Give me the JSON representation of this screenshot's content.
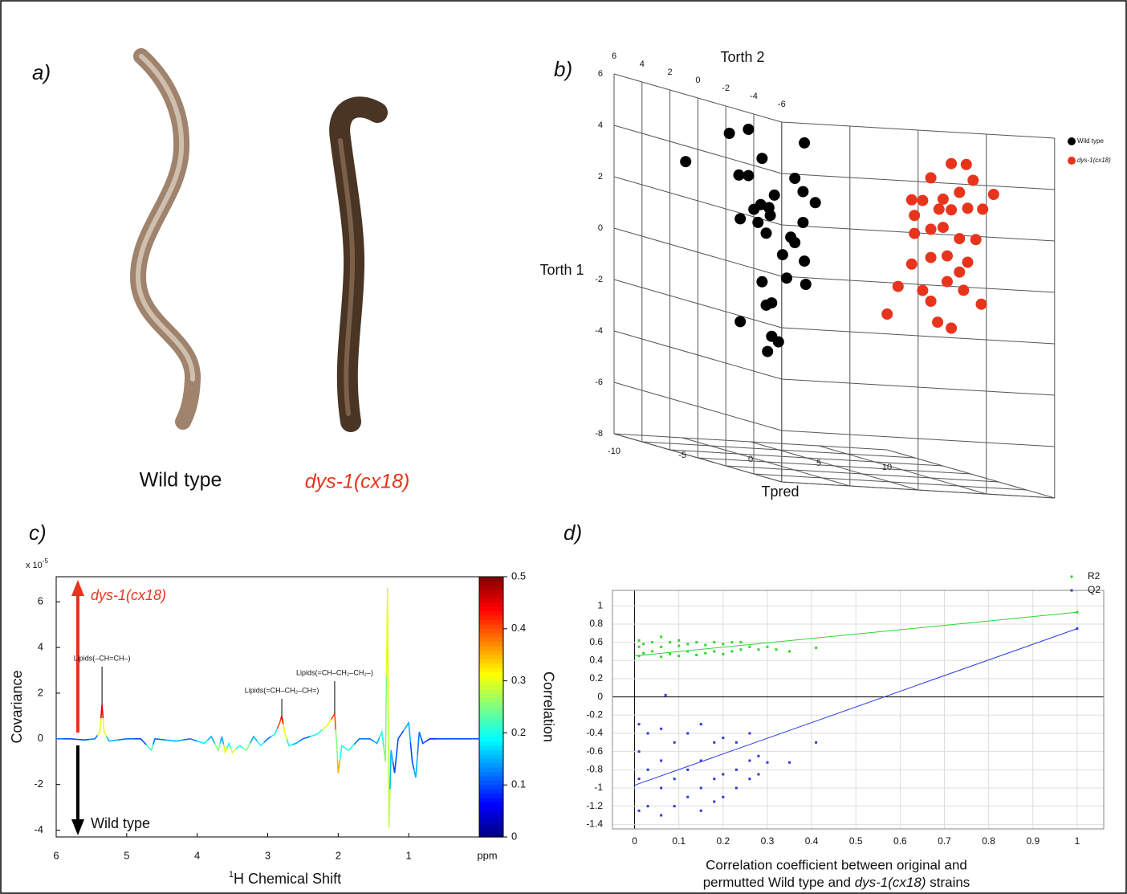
{
  "panel_labels": [
    "a)",
    "b)",
    "c)",
    "d)"
  ],
  "panel_a": {
    "labels": [
      "Wild type",
      "dys-1(cx18)"
    ]
  },
  "chart_data": [
    {
      "type": "scatter3d",
      "x_label": "Tpred",
      "y_label": "Torth 1",
      "z_label": "Torth 2",
      "xlim": [
        -10,
        10
      ],
      "ylim": [
        -8,
        6
      ],
      "zlim": [
        -6,
        6
      ],
      "xticks": [
        -10,
        -5,
        0,
        5,
        10
      ],
      "yticks": [
        -8,
        -6,
        -4,
        -2,
        0,
        2,
        4,
        6
      ],
      "zticks": [
        6,
        4,
        2,
        0,
        -2,
        -4,
        -6
      ],
      "series": [
        {
          "name": "Wild type",
          "color": "#000000",
          "x": [
            -6.8,
            -3.6,
            -2.2,
            1.9,
            -1.2,
            -2.9,
            -2.2,
            1.2,
            1.8,
            -0.3,
            -1.3,
            -0.7,
            -1.8,
            -2.8,
            -0.6,
            2.7,
            1.8,
            -1.5,
            -0.9,
            0.9,
            1.2,
            0.3,
            1.9,
            -1.2,
            0.6,
            2.0,
            -0.9,
            -0.5,
            -2.8,
            -0.5,
            0.0,
            -0.8
          ],
          "y": [
            3.0,
            4.2,
            4.4,
            4.0,
            3.3,
            2.6,
            2.6,
            2.6,
            2.1,
            1.9,
            1.5,
            1.4,
            1.3,
            0.9,
            1.1,
            1.7,
            0.9,
            0.8,
            0.4,
            0.3,
            0.1,
            -0.4,
            -0.6,
            -1.5,
            -1.3,
            -1.5,
            -2.4,
            -2.3,
            -3.1,
            -3.6,
            -3.8,
            -4.2
          ],
          "z": [
            4,
            4,
            4,
            4,
            4,
            4,
            4,
            4,
            4,
            4,
            4,
            4,
            4,
            4,
            4,
            4,
            4,
            4,
            4,
            4,
            4,
            4,
            4,
            4,
            4,
            4,
            4,
            4,
            4,
            4,
            4,
            4
          ]
        },
        {
          "name": "dys-1(cx18)",
          "color": "#e8341c",
          "x": [
            4.0,
            5.5,
            6.6,
            7.1,
            6.1,
            4.9,
            3.4,
            2.6,
            8.6,
            4.6,
            2.8,
            5.5,
            6.7,
            7.8,
            4.0,
            2.8,
            4.9,
            6.1,
            7.3,
            5.2,
            6.7,
            4.0,
            2.6,
            6.1,
            1.6,
            3.4,
            5.2,
            4.0,
            6.4,
            7.7,
            0.8,
            4.5,
            5.5
          ],
          "y": [
            3.8,
            4.4,
            4.4,
            3.8,
            3.3,
            3.0,
            2.9,
            2.9,
            3.3,
            2.6,
            2.3,
            2.6,
            2.7,
            2.7,
            1.8,
            1.6,
            1.9,
            1.5,
            1.5,
            0.8,
            0.6,
            0.7,
            0.4,
            0.2,
            -0.5,
            -0.6,
            -0.2,
            -1.0,
            -0.5,
            -1.0,
            -1.6,
            -1.8,
            -2.0
          ],
          "z": [
            -3,
            -3,
            -3,
            -3,
            -3,
            -3,
            -3,
            -3,
            -3,
            -3,
            -3,
            -3,
            -3,
            -3,
            -3,
            -3,
            -3,
            -3,
            -3,
            -3,
            -3,
            -3,
            -3,
            -3,
            -3,
            -3,
            -3,
            -3,
            -3,
            -3,
            -3,
            -3,
            -3
          ]
        }
      ]
    },
    {
      "type": "colored_line",
      "y_unit": "x 10",
      "y_unit_exp": "-5",
      "y_label": "Covariance",
      "x_label_sup": "1",
      "x_label": "H Chemical Shift",
      "x_unit": "ppm",
      "xlim": [
        6,
        0
      ],
      "ylim": [
        -4.3,
        7.1
      ],
      "xticks": [
        6,
        5,
        4,
        3,
        2,
        1
      ],
      "yticks": [
        -4,
        -2,
        0,
        2,
        4,
        6
      ],
      "x": [
        6.0,
        5.8,
        5.6,
        5.45,
        5.38,
        5.35,
        5.32,
        5.25,
        5.0,
        4.8,
        4.65,
        4.6,
        4.3,
        4.1,
        3.9,
        3.8,
        3.7,
        3.65,
        3.6,
        3.55,
        3.5,
        3.4,
        3.3,
        3.2,
        3.1,
        3.0,
        2.9,
        2.83,
        2.8,
        2.76,
        2.7,
        2.6,
        2.5,
        2.3,
        2.15,
        2.05,
        2.02,
        2.0,
        1.95,
        1.85,
        1.7,
        1.55,
        1.45,
        1.38,
        1.33,
        1.3,
        1.28,
        1.25,
        1.2,
        1.15,
        1.0,
        0.95,
        0.9,
        0.85,
        0.8,
        0.7,
        0.5,
        0.2,
        0.0
      ],
      "y": [
        0,
        0,
        -0.05,
        0,
        0.3,
        1.5,
        0.3,
        -0.1,
        0,
        0,
        -0.5,
        0,
        -0.1,
        0,
        -0.2,
        0.1,
        -0.5,
        0.1,
        -0.6,
        -0.2,
        -0.6,
        -0.3,
        -0.5,
        0.1,
        -0.3,
        0,
        0.2,
        0.7,
        1.0,
        0.3,
        -0.3,
        -0.2,
        0,
        0.2,
        0.6,
        1.1,
        -0.3,
        -1.5,
        -0.3,
        -0.5,
        0,
        0,
        -0.2,
        0.3,
        -1.0,
        6.6,
        -3.9,
        -0.5,
        -1.5,
        0,
        0.7,
        -1.0,
        -1.7,
        0.3,
        -0.2,
        0,
        0,
        0,
        0
      ],
      "correlation": [
        0.12,
        0.1,
        0.1,
        0.12,
        0.3,
        0.45,
        0.3,
        0.15,
        0.12,
        0.1,
        0.22,
        0.12,
        0.15,
        0.12,
        0.18,
        0.15,
        0.25,
        0.15,
        0.3,
        0.2,
        0.3,
        0.2,
        0.25,
        0.15,
        0.2,
        0.12,
        0.2,
        0.4,
        0.45,
        0.3,
        0.2,
        0.15,
        0.12,
        0.2,
        0.3,
        0.4,
        0.25,
        0.35,
        0.2,
        0.2,
        0.12,
        0.12,
        0.15,
        0.2,
        0.25,
        0.3,
        0.28,
        0.15,
        0.1,
        0.1,
        0.15,
        0.1,
        0.15,
        0.12,
        0.1,
        0.08,
        0.1,
        0.1,
        0.1
      ],
      "colorbar_label": "Correlation",
      "clim": [
        0,
        0.5
      ],
      "cticks": [
        0,
        0.1,
        0.2,
        0.3,
        0.4,
        0.5
      ],
      "annotations": [
        {
          "text": "Lipids(–CH=CH–)",
          "x": 5.35,
          "y": 1.5
        },
        {
          "text": "Lipids(=CH–CH₂–CH=)",
          "x": 2.8,
          "y": 1.0
        },
        {
          "text": "Lipids(=CH–CH₂–CH₂–)",
          "x": 2.05,
          "y": 1.1
        }
      ],
      "arrow_labels": [
        "dys-1(cx18)",
        "Wild type"
      ]
    },
    {
      "type": "scatter",
      "x_label": "Correlation  coefficient between original and",
      "x_label_2": [
        "permutted Wild type and",
        "dys-1(cx18)",
        "strains"
      ],
      "xlim": [
        -0.05,
        1.06
      ],
      "ylim": [
        -1.45,
        1.17
      ],
      "xticks": [
        0,
        0.1,
        0.2,
        0.3,
        0.4,
        0.5,
        0.6,
        0.7,
        0.8,
        0.9,
        1
      ],
      "yticks": [
        -1.4,
        -1.2,
        -1,
        -0.8,
        -0.6,
        -0.4,
        -0.2,
        0,
        0.2,
        0.4,
        0.6,
        0.8,
        1
      ],
      "grid": true,
      "legend": "upper right",
      "series": [
        {
          "name": "R2",
          "color": "#2fd62f",
          "x": [
            0.01,
            0.01,
            0.01,
            0.02,
            0.02,
            0.04,
            0.04,
            0.06,
            0.06,
            0.06,
            0.08,
            0.08,
            0.1,
            0.1,
            0.1,
            0.12,
            0.12,
            0.14,
            0.14,
            0.16,
            0.16,
            0.18,
            0.18,
            0.2,
            0.2,
            0.22,
            0.22,
            0.24,
            0.24,
            0.26,
            0.28,
            0.3,
            0.32,
            0.35,
            0.41,
            1
          ],
          "y": [
            0.45,
            0.55,
            0.62,
            0.48,
            0.58,
            0.5,
            0.6,
            0.44,
            0.55,
            0.66,
            0.47,
            0.6,
            0.45,
            0.56,
            0.62,
            0.5,
            0.58,
            0.46,
            0.6,
            0.48,
            0.57,
            0.5,
            0.6,
            0.47,
            0.58,
            0.5,
            0.6,
            0.52,
            0.6,
            0.55,
            0.52,
            0.55,
            0.52,
            0.5,
            0.54,
            0.93
          ],
          "fit_x": [
            0,
            1
          ],
          "fit_y": [
            0.45,
            0.93
          ]
        },
        {
          "name": "Q2",
          "color": "#2a3be0",
          "x": [
            0.01,
            0.01,
            0.01,
            0.01,
            0.03,
            0.03,
            0.03,
            0.06,
            0.06,
            0.06,
            0.06,
            0.07,
            0.09,
            0.09,
            0.09,
            0.12,
            0.12,
            0.12,
            0.15,
            0.15,
            0.15,
            0.15,
            0.18,
            0.18,
            0.18,
            0.2,
            0.2,
            0.2,
            0.23,
            0.23,
            0.23,
            0.26,
            0.26,
            0.26,
            0.28,
            0.28,
            0.3,
            0.35,
            0.41,
            1
          ],
          "y": [
            -0.3,
            -0.6,
            -0.9,
            -1.25,
            -0.4,
            -0.8,
            -1.2,
            -0.35,
            -0.7,
            -1.0,
            -1.3,
            0.02,
            -0.5,
            -0.9,
            -1.2,
            -0.4,
            -0.8,
            -1.1,
            -0.3,
            -0.7,
            -1.0,
            -1.25,
            -0.5,
            -0.9,
            -1.15,
            -0.45,
            -0.85,
            -1.1,
            -0.5,
            -0.8,
            -1.0,
            -0.4,
            -0.7,
            -0.9,
            -0.65,
            -0.85,
            -0.72,
            -0.72,
            -0.5,
            0.75
          ],
          "fit_x": [
            0,
            1
          ],
          "fit_y": [
            -0.97,
            0.75
          ]
        }
      ]
    }
  ]
}
